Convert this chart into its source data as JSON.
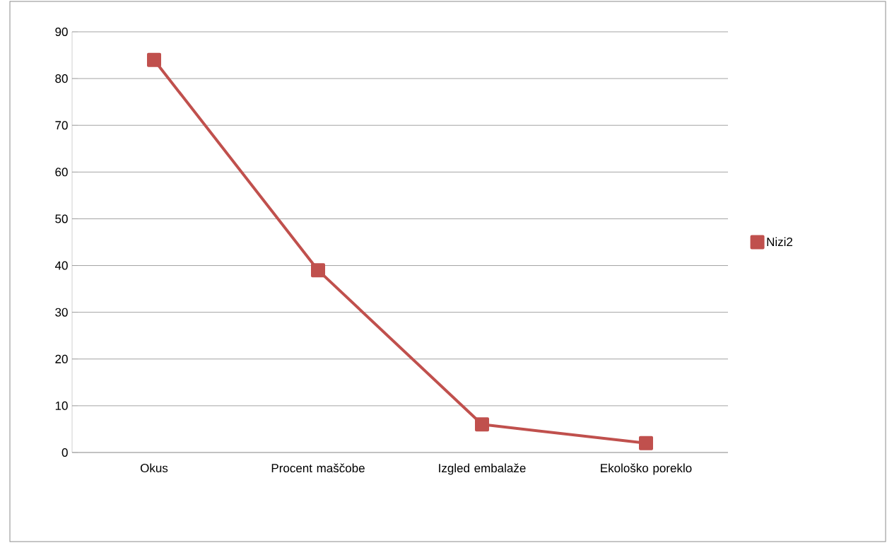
{
  "chart_data": {
    "type": "line",
    "categories": [
      "Okus",
      "Procent maščobe",
      "Izgled embalaže",
      "Ekološko poreklo"
    ],
    "series": [
      {
        "name": "Nizi2",
        "color": "#c0504d",
        "values": [
          84,
          39,
          6,
          2
        ]
      }
    ],
    "ylim": [
      0,
      90
    ],
    "yticks": [
      0,
      10,
      20,
      30,
      40,
      50,
      60,
      70,
      80,
      90
    ],
    "grid": "y",
    "legend": "right",
    "marker": "square",
    "line_style": "solid"
  }
}
